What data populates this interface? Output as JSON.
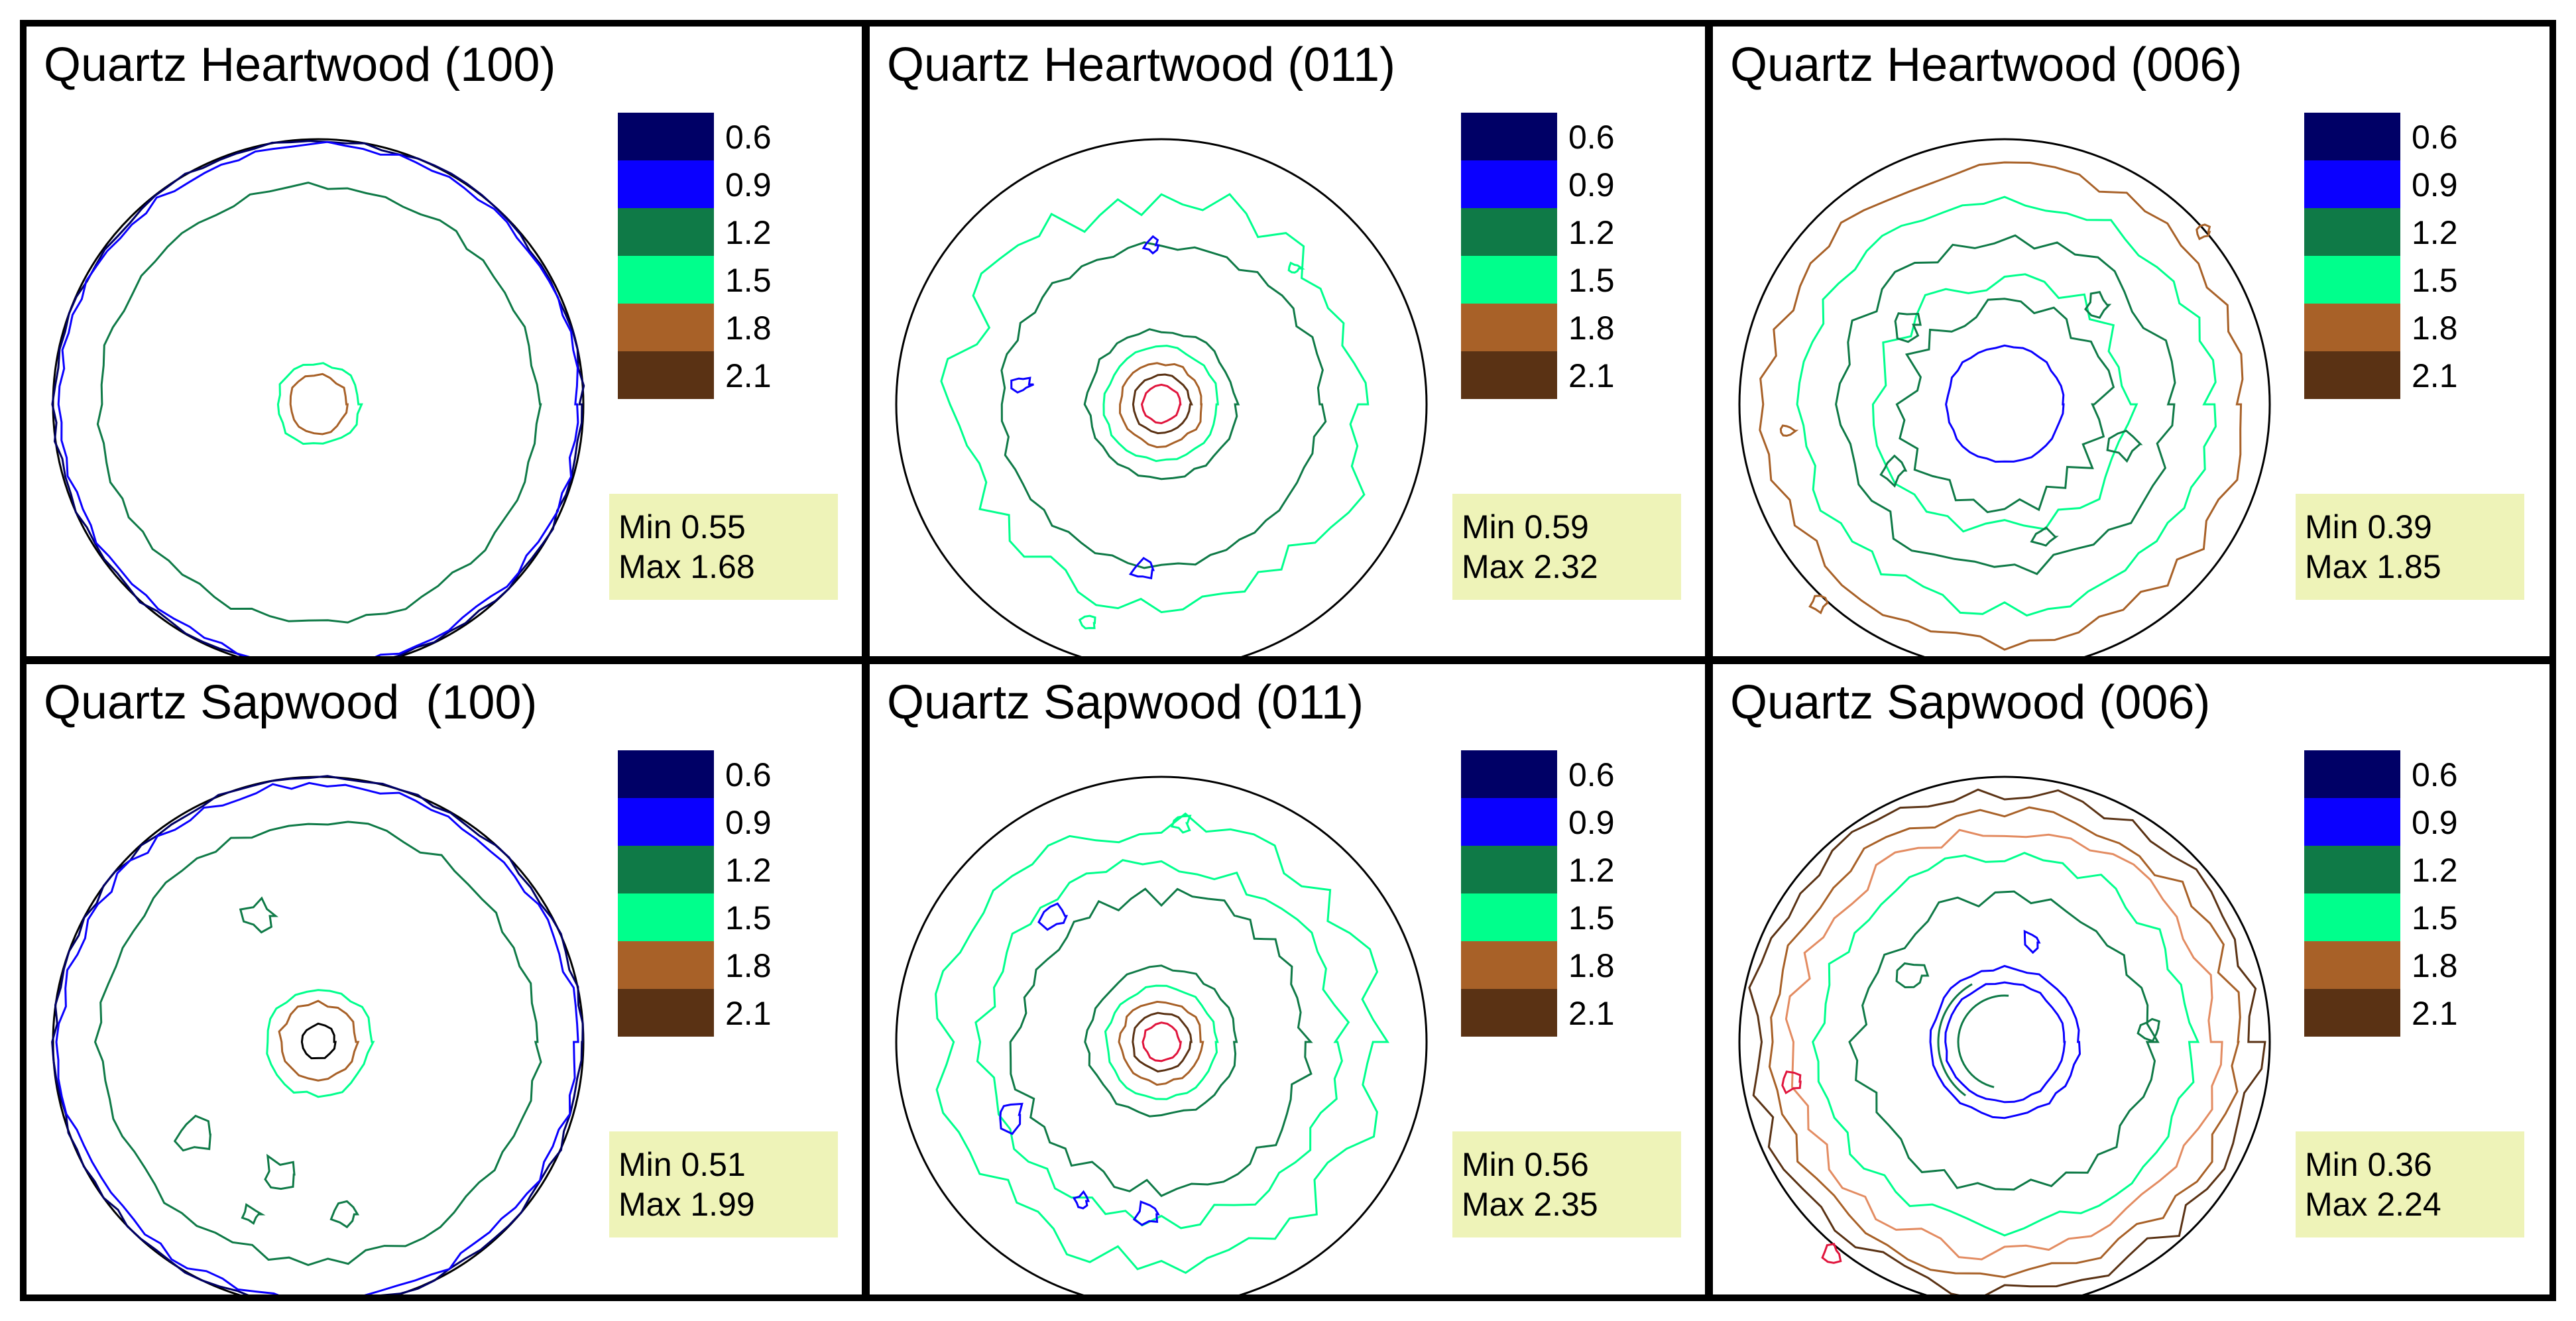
{
  "figure": {
    "background_color": "#ffffff",
    "border_color": "#000000",
    "stats_box_color": "#eef3b8",
    "legend": {
      "levels": [
        "0.6",
        "0.9",
        "1.2",
        "1.5",
        "1.8",
        "2.1"
      ],
      "colors": [
        "#000066",
        "#0a00ff",
        "#0f7a47",
        "#00ff8c",
        "#a86128",
        "#5a3214"
      ]
    },
    "panels": [
      {
        "id": "hw-100",
        "title": "Quartz Heartwood (100)",
        "min_label": "Min 0.55",
        "max_label": "Max 1.68"
      },
      {
        "id": "hw-011",
        "title": "Quartz Heartwood (011)",
        "min_label": "Min 0.59",
        "max_label": "Max 2.32"
      },
      {
        "id": "hw-006",
        "title": "Quartz Heartwood (006)",
        "min_label": "Min 0.39",
        "max_label": "Max 1.85"
      },
      {
        "id": "sw-100",
        "title": "Quartz Sapwood  (100)",
        "min_label": "Min 0.51",
        "max_label": "Max 1.99"
      },
      {
        "id": "sw-011",
        "title": "Quartz Sapwood (011)",
        "min_label": "Min 0.56",
        "max_label": "Max 2.35"
      },
      {
        "id": "sw-006",
        "title": "Quartz Sapwood (006)",
        "min_label": "Min 0.36",
        "max_label": "Max 2.24"
      }
    ]
  }
}
